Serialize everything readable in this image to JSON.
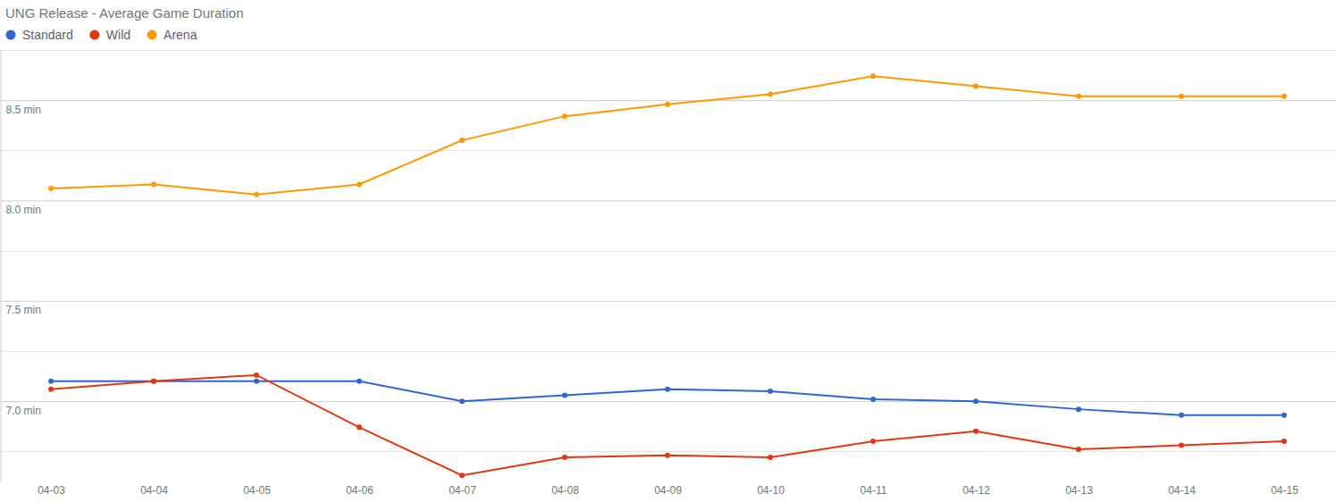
{
  "chart_data": {
    "type": "line",
    "title": "UNG Release - Average Game Duration",
    "categories": [
      "04-03",
      "04-04",
      "04-05",
      "04-06",
      "04-07",
      "04-08",
      "04-09",
      "04-10",
      "04-11",
      "04-12",
      "04-13",
      "04-14",
      "04-15"
    ],
    "series": [
      {
        "name": "Standard",
        "color": "#3366cc",
        "values": [
          7.1,
          7.1,
          7.1,
          7.1,
          7.0,
          7.03,
          7.06,
          7.05,
          7.01,
          7.0,
          6.96,
          6.93,
          6.93
        ]
      },
      {
        "name": "Wild",
        "color": "#dc3912",
        "values": [
          7.06,
          7.1,
          7.13,
          6.87,
          6.63,
          6.72,
          6.73,
          6.72,
          6.8,
          6.85,
          6.76,
          6.78,
          6.8
        ]
      },
      {
        "name": "Arena",
        "color": "#ff9900",
        "values": [
          8.06,
          8.08,
          8.03,
          8.08,
          8.3,
          8.42,
          8.48,
          8.53,
          8.62,
          8.57,
          8.52,
          8.52,
          8.52
        ]
      }
    ],
    "ylim": [
      6.6,
      8.75
    ],
    "yticks": [
      {
        "value": 7,
        "label": "7.0 min"
      },
      {
        "value": 7.5,
        "label": "7.5 min"
      },
      {
        "value": 8,
        "label": "8.0 min"
      },
      {
        "value": 8.5,
        "label": "8.5 min"
      }
    ],
    "grid": true,
    "legend": "top",
    "marker": "circle"
  }
}
